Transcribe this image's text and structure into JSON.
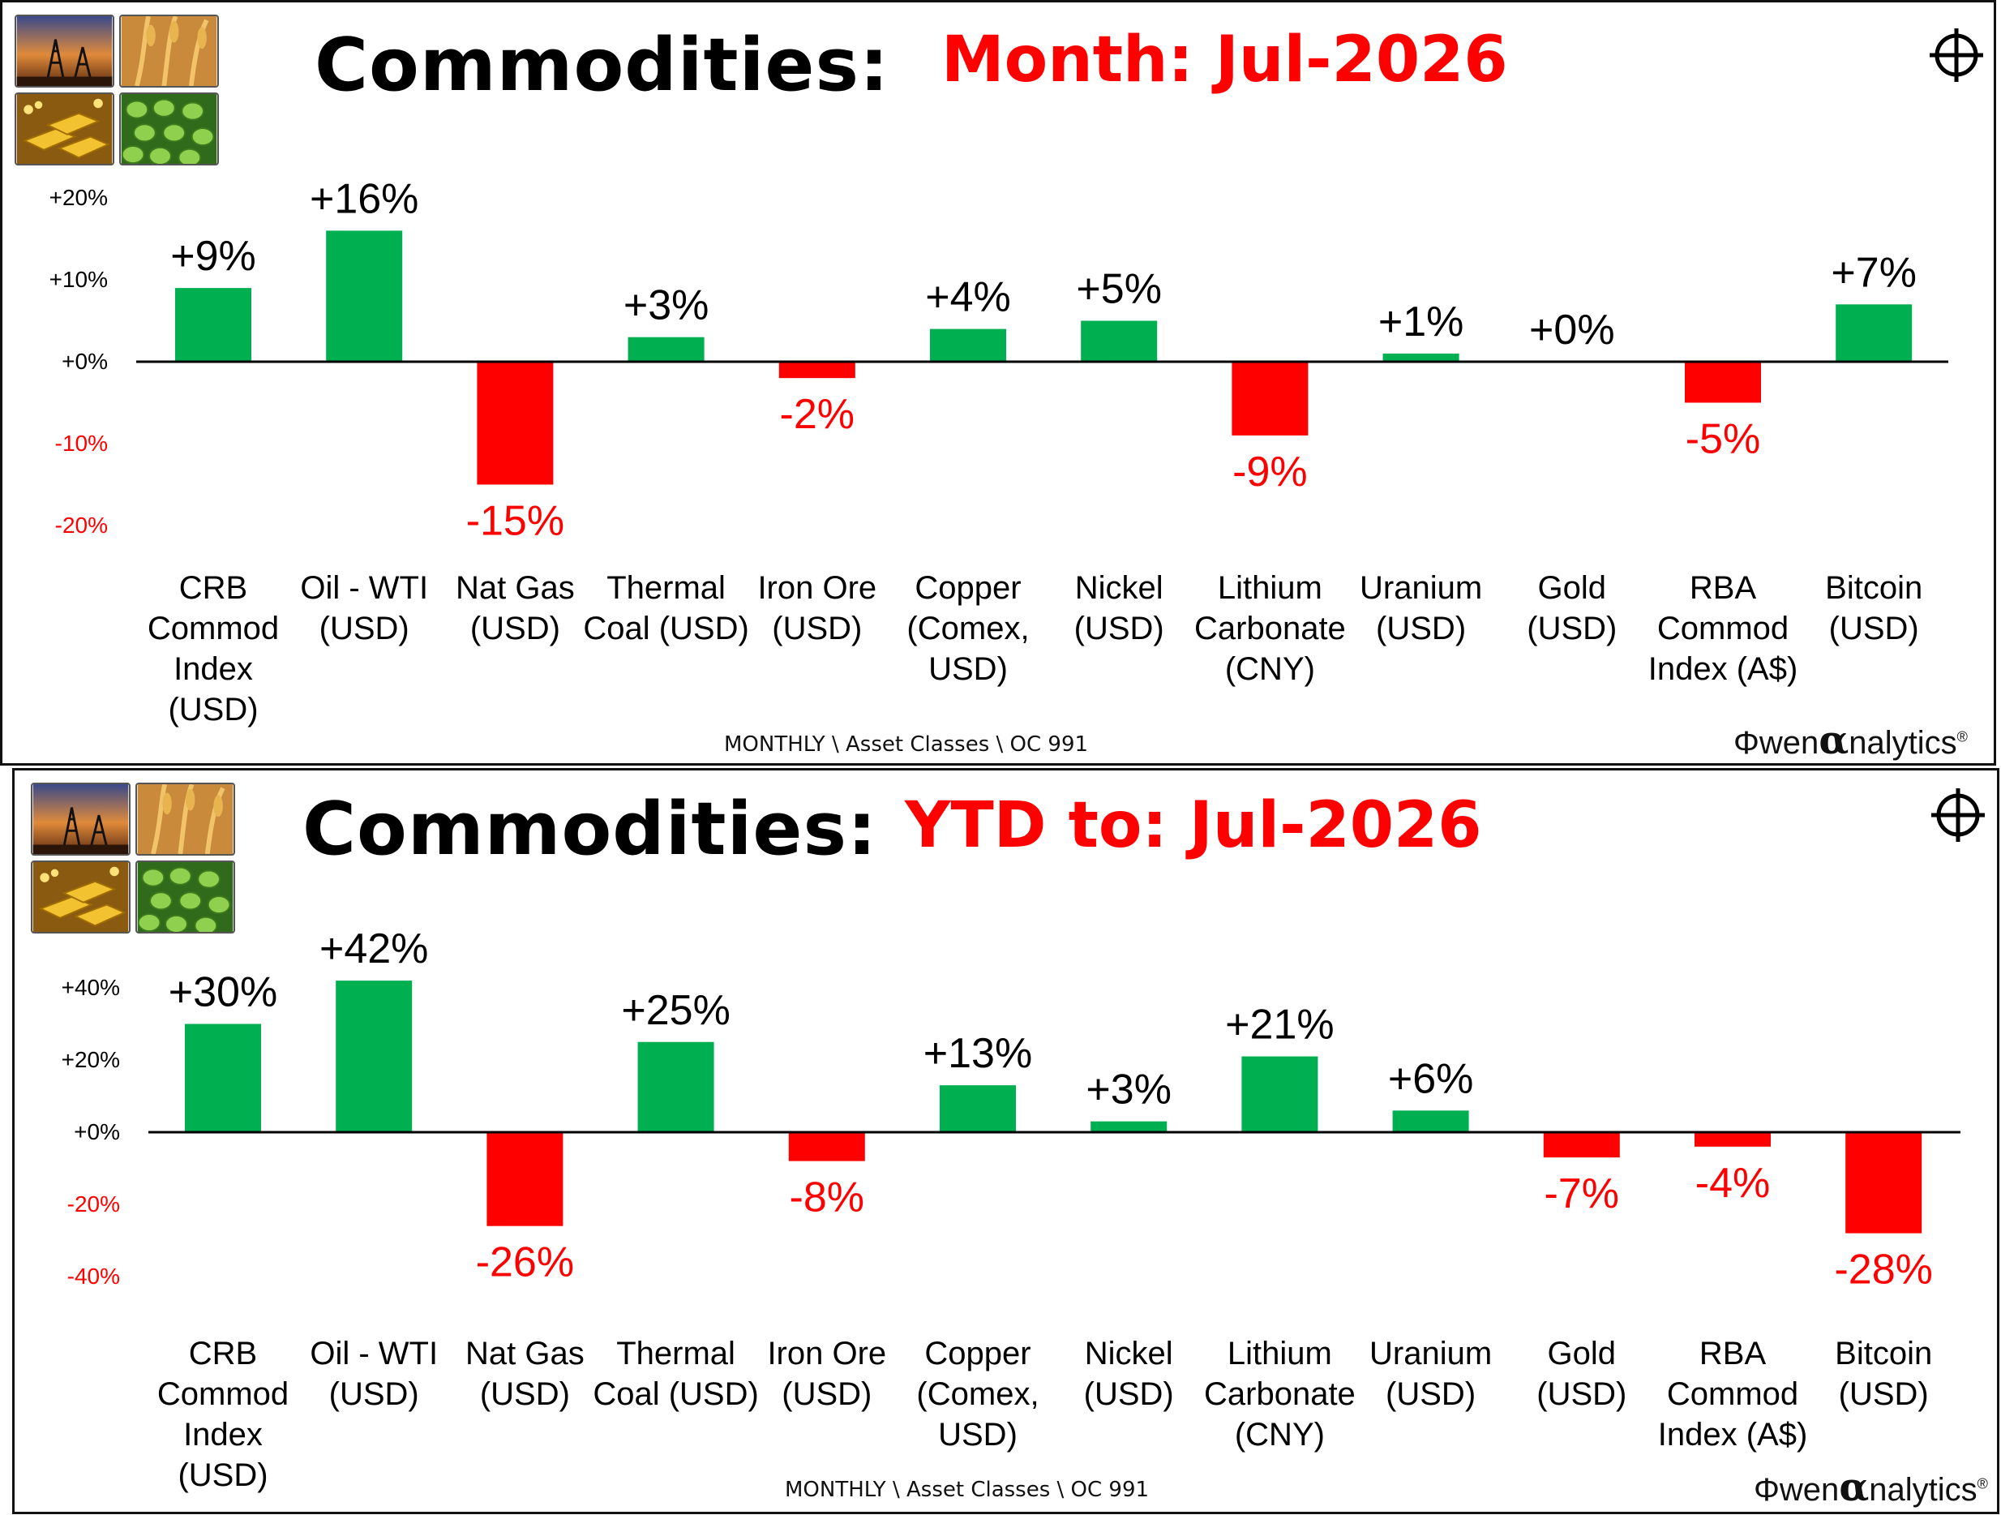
{
  "colors": {
    "positive": "#00b050",
    "negative": "#ff0000",
    "text": "#000000"
  },
  "panels": [
    {
      "title": "Commodities:",
      "period_label": "Month:  Jul-2026",
      "footer": "MONTHLY \\ Asset Classes \\ OC 991",
      "logo_text": "wen",
      "logo_alpha": "α",
      "logo_rest": "nalytics",
      "logo_reg": "®",
      "thumbnails": [
        "oil-derricks-image",
        "wheat-image",
        "gold-bars-image",
        "soybeans-image"
      ]
    },
    {
      "title": "Commodities:",
      "period_label": "YTD to:  Jul-2026",
      "footer": "MONTHLY \\ Asset Classes \\ OC 991",
      "logo_text": "wen",
      "logo_alpha": "α",
      "logo_rest": "nalytics",
      "logo_reg": "®",
      "thumbnails": [
        "oil-derricks-image",
        "wheat-image",
        "gold-bars-image",
        "soybeans-image"
      ]
    }
  ],
  "chart_data": [
    {
      "type": "bar",
      "title": "Commodities:  Month:  Jul-2026",
      "categories": [
        [
          "CRB",
          "Commod",
          "Index",
          "(USD)"
        ],
        [
          "Oil - WTI",
          "(USD)"
        ],
        [
          "Nat Gas",
          "(USD)"
        ],
        [
          "Thermal",
          "Coal (USD)"
        ],
        [
          "Iron Ore",
          "(USD)"
        ],
        [
          "Copper",
          "(Comex,",
          "USD)"
        ],
        [
          "Nickel",
          "(USD)"
        ],
        [
          "Lithium",
          "Carbonate",
          "(CNY)"
        ],
        [
          "Uranium",
          "(USD)"
        ],
        [
          "Gold",
          "(USD)"
        ],
        [
          "RBA",
          "Commod",
          "Index (A$)"
        ],
        [
          "Bitcoin",
          "(USD)"
        ]
      ],
      "values": [
        9,
        16,
        -15,
        3,
        -2,
        4,
        5,
        -9,
        1,
        0,
        -5,
        7
      ],
      "data_labels": [
        "+9%",
        "+16%",
        "-15%",
        "+3%",
        "-2%",
        "+4%",
        "+5%",
        "-9%",
        "+1%",
        "+0%",
        "-5%",
        "+7%"
      ],
      "yticks": [
        20,
        10,
        0,
        -10,
        -20
      ],
      "ytick_labels": [
        "+20%",
        "+10%",
        "+0%",
        "-10%",
        "-20%"
      ],
      "ylim": [
        -24,
        24
      ]
    },
    {
      "type": "bar",
      "title": "Commodities:  YTD to:  Jul-2026",
      "categories": [
        [
          "CRB",
          "Commod",
          "Index",
          "(USD)"
        ],
        [
          "Oil - WTI",
          "(USD)"
        ],
        [
          "Nat Gas",
          "(USD)"
        ],
        [
          "Thermal",
          "Coal (USD)"
        ],
        [
          "Iron Ore",
          "(USD)"
        ],
        [
          "Copper",
          "(Comex,",
          "USD)"
        ],
        [
          "Nickel",
          "(USD)"
        ],
        [
          "Lithium",
          "Carbonate",
          "(CNY)"
        ],
        [
          "Uranium",
          "(USD)"
        ],
        [
          "Gold",
          "(USD)"
        ],
        [
          "RBA",
          "Commod",
          "Index (A$)"
        ],
        [
          "Bitcoin",
          "(USD)"
        ]
      ],
      "values": [
        30,
        42,
        -26,
        25,
        -8,
        13,
        3,
        21,
        6,
        -7,
        -4,
        -28
      ],
      "data_labels": [
        "+30%",
        "+42%",
        "-26%",
        "+25%",
        "-8%",
        "+13%",
        "+3%",
        "+21%",
        "+6%",
        "-7%",
        "-4%",
        "-28%"
      ],
      "yticks": [
        40,
        20,
        0,
        -20,
        -40
      ],
      "ytick_labels": [
        "+40%",
        "+20%",
        "+0%",
        "-20%",
        "-40%"
      ],
      "ylim": [
        -48,
        48
      ]
    }
  ]
}
